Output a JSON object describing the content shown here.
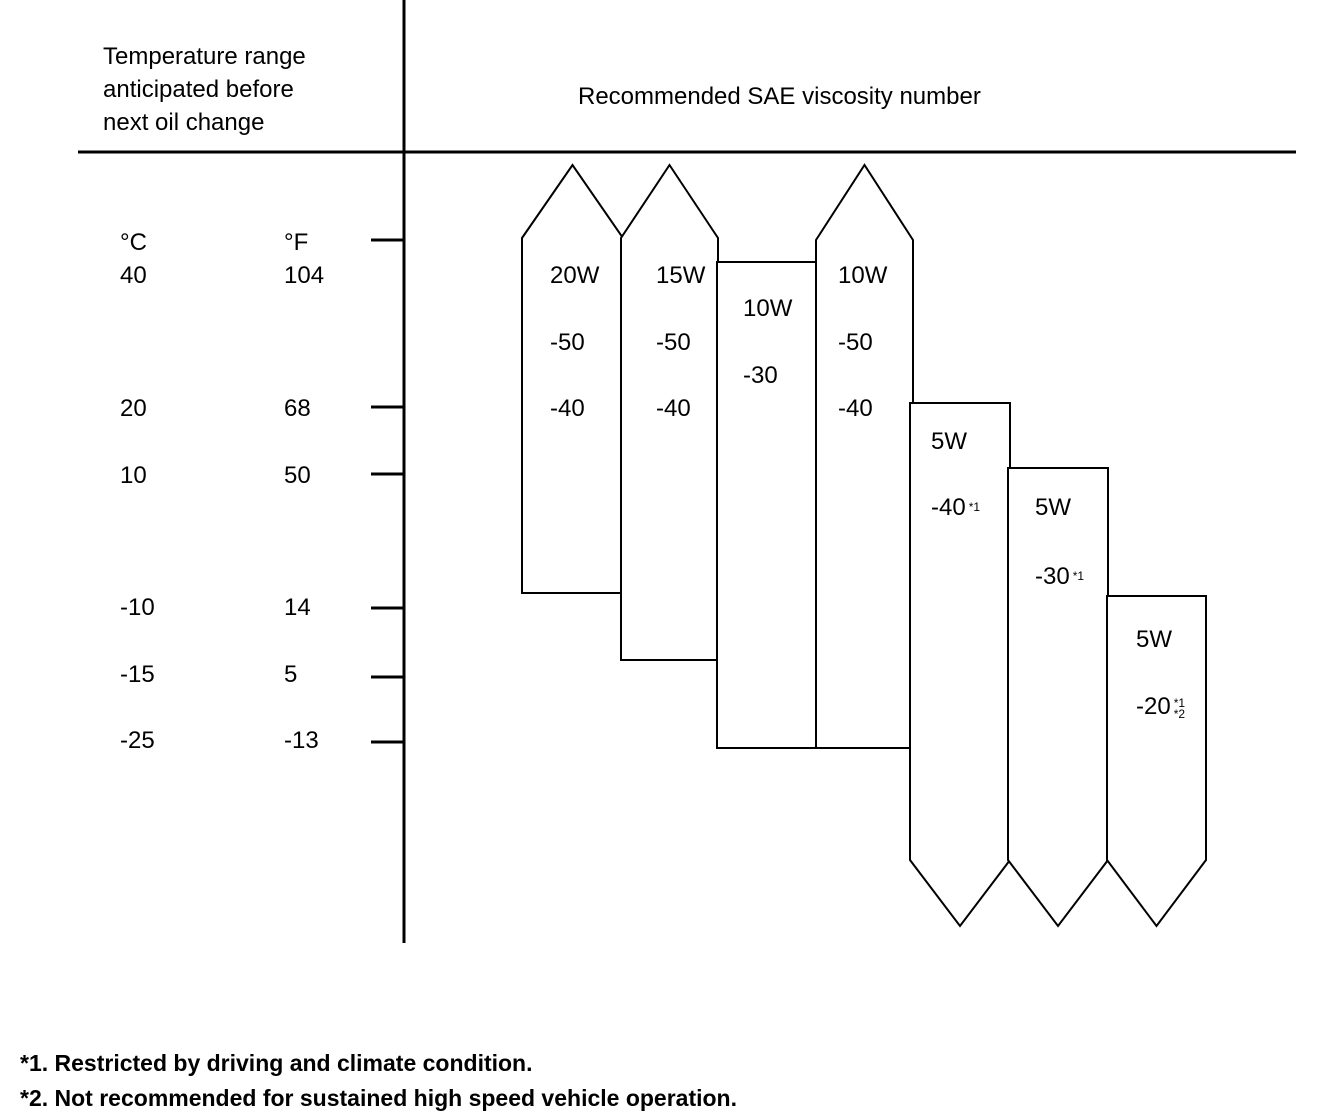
{
  "header": {
    "left_title": [
      "Temperature range",
      "anticipated before",
      "next oil change"
    ],
    "right_title": "Recommended SAE viscosity number"
  },
  "scale": {
    "celsius_unit": "°C",
    "fahrenheit_unit": "°F",
    "rows": [
      {
        "c": "40",
        "f": "104"
      },
      {
        "c": "20",
        "f": "68"
      },
      {
        "c": "10",
        "f": "50"
      },
      {
        "c": "-10",
        "f": "14"
      },
      {
        "c": "-15",
        "f": "5"
      },
      {
        "c": "-25",
        "f": "-13"
      }
    ]
  },
  "grades": [
    {
      "line1": "20W",
      "line2": "-50",
      "line3": "-40",
      "range_c": [
        "-10",
        "above 40"
      ]
    },
    {
      "line1": "15W",
      "line2": "-50",
      "line3": "-40",
      "range_c": [
        "-15",
        "above 40"
      ]
    },
    {
      "line1": "10W",
      "line2": "-30",
      "range_c": [
        "-25",
        "40"
      ]
    },
    {
      "line1": "10W",
      "line2": "-50",
      "line3": "-40",
      "range_c": [
        "-25",
        "above 40"
      ]
    },
    {
      "line1": "5W",
      "line2": "-40",
      "note": "*1",
      "range_c": [
        "below -25",
        "20"
      ]
    },
    {
      "line1": "5W",
      "line2": "-30",
      "note": "*1",
      "range_c": [
        "below -25",
        "10"
      ]
    },
    {
      "line1": "5W",
      "line2": "-20",
      "note": "*1",
      "note2": "*2",
      "range_c": [
        "below -25",
        "-10"
      ]
    }
  ],
  "footnotes": [
    "*1. Restricted by driving and climate condition.",
    "*2. Not recommended for sustained high speed vehicle operation."
  ]
}
